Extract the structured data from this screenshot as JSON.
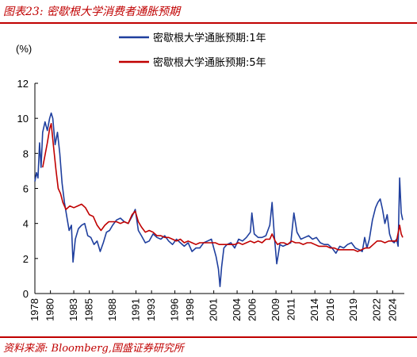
{
  "header": {
    "title": "图表23:  密歇根大学消费者通胀预期",
    "source": "资料来源:  Bloomberg,国盛证券研究所",
    "accent_color": "#c00000"
  },
  "chart_data": {
    "type": "line",
    "ylabel": "(%)",
    "ylim": [
      0,
      12
    ],
    "yticks": [
      "0",
      "2",
      "4",
      "6",
      "8",
      "10",
      "12"
    ],
    "xlim": [
      1978,
      2025.5
    ],
    "xticks": [
      "1978",
      "1980",
      "1983",
      "1985",
      "1988",
      "1991",
      "1993",
      "1996",
      "1998",
      "2001",
      "2004",
      "2006",
      "2009",
      "2011",
      "2014",
      "2016",
      "2019",
      "2022",
      "2024"
    ],
    "grid": false,
    "legend_position": "top-center",
    "series": [
      {
        "name": "密歇根大学通胀预期:1年",
        "color": "#1f3f9e",
        "points": [
          [
            1978.0,
            6.4
          ],
          [
            1978.2,
            6.9
          ],
          [
            1978.4,
            6.6
          ],
          [
            1978.6,
            8.6
          ],
          [
            1978.8,
            7.2
          ],
          [
            1979.0,
            9.2
          ],
          [
            1979.3,
            9.8
          ],
          [
            1979.6,
            9.3
          ],
          [
            1979.9,
            10.0
          ],
          [
            1980.1,
            10.3
          ],
          [
            1980.3,
            10.0
          ],
          [
            1980.6,
            8.5
          ],
          [
            1980.9,
            9.2
          ],
          [
            1981.2,
            8.0
          ],
          [
            1981.5,
            6.3
          ],
          [
            1981.8,
            5.2
          ],
          [
            1982.1,
            4.4
          ],
          [
            1982.4,
            3.6
          ],
          [
            1982.7,
            3.9
          ],
          [
            1982.9,
            1.8
          ],
          [
            1983.2,
            3.1
          ],
          [
            1983.6,
            3.7
          ],
          [
            1984.0,
            3.9
          ],
          [
            1984.4,
            4.0
          ],
          [
            1984.8,
            3.3
          ],
          [
            1985.2,
            3.2
          ],
          [
            1985.6,
            2.8
          ],
          [
            1986.0,
            3.0
          ],
          [
            1986.4,
            2.4
          ],
          [
            1986.8,
            2.9
          ],
          [
            1987.2,
            3.5
          ],
          [
            1987.6,
            3.6
          ],
          [
            1988.0,
            3.9
          ],
          [
            1988.5,
            4.2
          ],
          [
            1989.0,
            4.3
          ],
          [
            1989.5,
            4.1
          ],
          [
            1990.0,
            4.0
          ],
          [
            1990.5,
            4.4
          ],
          [
            1990.9,
            4.8
          ],
          [
            1991.3,
            3.6
          ],
          [
            1991.7,
            3.3
          ],
          [
            1992.2,
            2.9
          ],
          [
            1992.7,
            3.0
          ],
          [
            1993.2,
            3.4
          ],
          [
            1993.7,
            3.2
          ],
          [
            1994.2,
            3.1
          ],
          [
            1994.7,
            3.3
          ],
          [
            1995.2,
            3.0
          ],
          [
            1995.7,
            2.8
          ],
          [
            1996.2,
            3.1
          ],
          [
            1996.7,
            2.9
          ],
          [
            1997.2,
            2.7
          ],
          [
            1997.7,
            2.9
          ],
          [
            1998.2,
            2.4
          ],
          [
            1998.7,
            2.6
          ],
          [
            1999.2,
            2.6
          ],
          [
            1999.7,
            2.9
          ],
          [
            2000.2,
            3.0
          ],
          [
            2000.7,
            3.1
          ],
          [
            2001.0,
            2.6
          ],
          [
            2001.3,
            2.1
          ],
          [
            2001.6,
            1.4
          ],
          [
            2001.8,
            0.4
          ],
          [
            2002.0,
            1.5
          ],
          [
            2002.3,
            2.6
          ],
          [
            2002.7,
            2.8
          ],
          [
            2003.2,
            2.9
          ],
          [
            2003.7,
            2.6
          ],
          [
            2004.2,
            3.1
          ],
          [
            2004.7,
            3.0
          ],
          [
            2005.2,
            3.2
          ],
          [
            2005.7,
            3.5
          ],
          [
            2005.9,
            4.6
          ],
          [
            2006.2,
            3.4
          ],
          [
            2006.7,
            3.2
          ],
          [
            2007.2,
            3.2
          ],
          [
            2007.7,
            3.3
          ],
          [
            2008.2,
            3.9
          ],
          [
            2008.5,
            5.2
          ],
          [
            2008.8,
            3.2
          ],
          [
            2009.1,
            1.7
          ],
          [
            2009.5,
            2.8
          ],
          [
            2009.9,
            2.7
          ],
          [
            2010.4,
            2.8
          ],
          [
            2010.9,
            2.9
          ],
          [
            2011.3,
            4.6
          ],
          [
            2011.7,
            3.5
          ],
          [
            2012.2,
            3.1
          ],
          [
            2012.7,
            3.2
          ],
          [
            2013.2,
            3.3
          ],
          [
            2013.7,
            3.1
          ],
          [
            2014.2,
            3.2
          ],
          [
            2014.7,
            2.9
          ],
          [
            2015.2,
            2.8
          ],
          [
            2015.7,
            2.8
          ],
          [
            2016.2,
            2.6
          ],
          [
            2016.7,
            2.3
          ],
          [
            2017.2,
            2.7
          ],
          [
            2017.7,
            2.6
          ],
          [
            2018.2,
            2.8
          ],
          [
            2018.7,
            2.9
          ],
          [
            2019.2,
            2.6
          ],
          [
            2019.7,
            2.5
          ],
          [
            2020.1,
            2.4
          ],
          [
            2020.4,
            3.2
          ],
          [
            2020.7,
            2.6
          ],
          [
            2021.0,
            3.1
          ],
          [
            2021.4,
            4.2
          ],
          [
            2021.8,
            4.9
          ],
          [
            2022.1,
            5.2
          ],
          [
            2022.4,
            5.4
          ],
          [
            2022.7,
            4.8
          ],
          [
            2023.0,
            4.0
          ],
          [
            2023.3,
            4.5
          ],
          [
            2023.6,
            3.4
          ],
          [
            2023.9,
            3.0
          ],
          [
            2024.2,
            2.9
          ],
          [
            2024.5,
            3.1
          ],
          [
            2024.7,
            2.7
          ],
          [
            2024.9,
            6.6
          ],
          [
            2025.1,
            4.6
          ],
          [
            2025.3,
            4.2
          ]
        ]
      },
      {
        "name": "密歇根大学通胀预期:5年",
        "color": "#c00000",
        "points": [
          [
            1979.0,
            7.2
          ],
          [
            1979.3,
            7.9
          ],
          [
            1979.6,
            8.6
          ],
          [
            1979.9,
            9.4
          ],
          [
            1980.1,
            9.7
          ],
          [
            1980.4,
            8.4
          ],
          [
            1980.7,
            7.1
          ],
          [
            1981.0,
            6.0
          ],
          [
            1981.3,
            5.7
          ],
          [
            1981.6,
            5.2
          ],
          [
            1982.0,
            4.8
          ],
          [
            1982.5,
            5.0
          ],
          [
            1983.0,
            4.9
          ],
          [
            1983.5,
            5.0
          ],
          [
            1984.0,
            5.1
          ],
          [
            1984.5,
            4.9
          ],
          [
            1985.0,
            4.5
          ],
          [
            1985.5,
            4.4
          ],
          [
            1986.0,
            3.9
          ],
          [
            1986.5,
            3.6
          ],
          [
            1987.0,
            3.9
          ],
          [
            1987.5,
            4.1
          ],
          [
            1988.0,
            4.1
          ],
          [
            1988.5,
            4.1
          ],
          [
            1989.0,
            4.0
          ],
          [
            1989.5,
            4.1
          ],
          [
            1990.0,
            4.0
          ],
          [
            1990.5,
            4.5
          ],
          [
            1990.9,
            4.7
          ],
          [
            1991.3,
            4.1
          ],
          [
            1991.7,
            3.8
          ],
          [
            1992.2,
            3.5
          ],
          [
            1992.7,
            3.6
          ],
          [
            1993.2,
            3.5
          ],
          [
            1993.7,
            3.3
          ],
          [
            1994.2,
            3.3
          ],
          [
            1994.7,
            3.2
          ],
          [
            1995.2,
            3.2
          ],
          [
            1995.7,
            3.1
          ],
          [
            1996.2,
            3.0
          ],
          [
            1996.7,
            3.1
          ],
          [
            1997.2,
            2.9
          ],
          [
            1997.7,
            3.0
          ],
          [
            1998.2,
            2.9
          ],
          [
            1998.7,
            2.8
          ],
          [
            1999.2,
            2.9
          ],
          [
            1999.7,
            2.9
          ],
          [
            2000.2,
            2.9
          ],
          [
            2000.7,
            2.9
          ],
          [
            2001.2,
            2.9
          ],
          [
            2001.7,
            2.8
          ],
          [
            2002.2,
            2.8
          ],
          [
            2002.7,
            2.8
          ],
          [
            2003.2,
            2.8
          ],
          [
            2003.7,
            2.8
          ],
          [
            2004.2,
            2.9
          ],
          [
            2004.7,
            2.8
          ],
          [
            2005.2,
            2.9
          ],
          [
            2005.7,
            3.0
          ],
          [
            2006.2,
            2.9
          ],
          [
            2006.7,
            3.0
          ],
          [
            2007.2,
            2.9
          ],
          [
            2007.7,
            3.1
          ],
          [
            2008.2,
            3.1
          ],
          [
            2008.5,
            3.4
          ],
          [
            2008.9,
            3.0
          ],
          [
            2009.2,
            2.8
          ],
          [
            2009.6,
            2.9
          ],
          [
            2010.0,
            2.9
          ],
          [
            2010.5,
            2.8
          ],
          [
            2011.0,
            3.0
          ],
          [
            2011.5,
            2.9
          ],
          [
            2012.0,
            2.9
          ],
          [
            2012.5,
            2.8
          ],
          [
            2013.0,
            2.9
          ],
          [
            2013.5,
            2.9
          ],
          [
            2014.0,
            2.8
          ],
          [
            2014.5,
            2.7
          ],
          [
            2015.0,
            2.7
          ],
          [
            2015.5,
            2.7
          ],
          [
            2016.0,
            2.6
          ],
          [
            2016.5,
            2.6
          ],
          [
            2017.0,
            2.5
          ],
          [
            2017.5,
            2.5
          ],
          [
            2018.0,
            2.5
          ],
          [
            2018.5,
            2.5
          ],
          [
            2019.0,
            2.5
          ],
          [
            2019.5,
            2.4
          ],
          [
            2020.0,
            2.5
          ],
          [
            2020.5,
            2.6
          ],
          [
            2021.0,
            2.6
          ],
          [
            2021.5,
            2.8
          ],
          [
            2022.0,
            3.0
          ],
          [
            2022.5,
            3.0
          ],
          [
            2023.0,
            2.9
          ],
          [
            2023.5,
            3.0
          ],
          [
            2024.0,
            3.0
          ],
          [
            2024.5,
            3.0
          ],
          [
            2024.9,
            3.9
          ],
          [
            2025.1,
            3.4
          ],
          [
            2025.3,
            3.2
          ]
        ]
      }
    ]
  }
}
